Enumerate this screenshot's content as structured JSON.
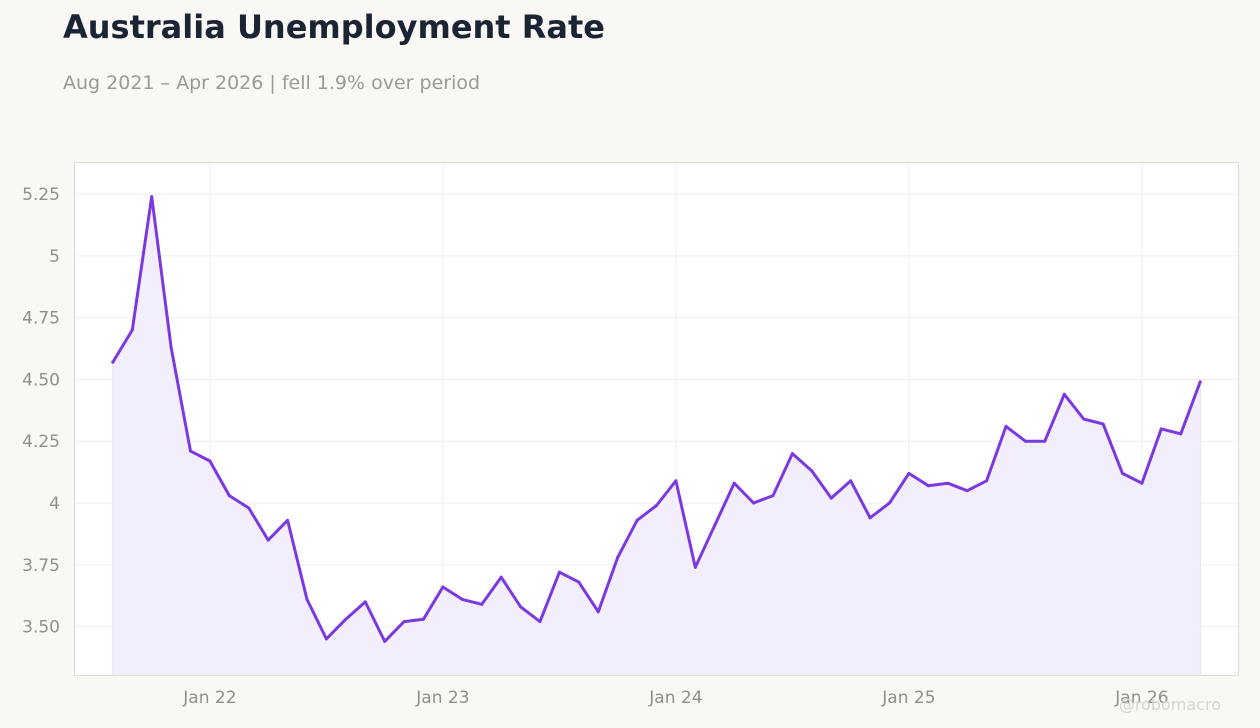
{
  "header": {
    "title": "Australia Unemployment Rate",
    "subtitle": "Aug 2021 – Apr 2026 | fell 1.9% over period"
  },
  "watermark": "@robomacro",
  "colors": {
    "line": "#7b3ae0",
    "fill": "#f1ecfc",
    "grid": "#eeeeee",
    "frame": "#dddcd6"
  },
  "chart_data": {
    "type": "area",
    "title": "Australia Unemployment Rate",
    "subtitle": "Aug 2021 – Apr 2026 | fell 1.9% over period",
    "xlabel": "",
    "ylabel": "",
    "grid": true,
    "legend": "none",
    "ylim": [
      3.3,
      5.38
    ],
    "xlim": [
      "2021-06",
      "2026-06"
    ],
    "y_ticks": [
      {
        "value": 3.5,
        "label": "3.50"
      },
      {
        "value": 3.75,
        "label": "3.75"
      },
      {
        "value": 4.0,
        "label": "4"
      },
      {
        "value": 4.25,
        "label": "4.25"
      },
      {
        "value": 4.5,
        "label": "4.50"
      },
      {
        "value": 4.75,
        "label": "4.75"
      },
      {
        "value": 5.0,
        "label": "5"
      },
      {
        "value": 5.25,
        "label": "5.25"
      }
    ],
    "x_ticks": [
      {
        "value": "2022-01",
        "label": "Jan 22"
      },
      {
        "value": "2023-01",
        "label": "Jan 23"
      },
      {
        "value": "2024-01",
        "label": "Jan 24"
      },
      {
        "value": "2025-01",
        "label": "Jan 25"
      },
      {
        "value": "2026-01",
        "label": "Jan 26"
      }
    ],
    "x": [
      "2021-08",
      "2021-09",
      "2021-10",
      "2021-11",
      "2021-12",
      "2022-01",
      "2022-02",
      "2022-03",
      "2022-04",
      "2022-05",
      "2022-06",
      "2022-07",
      "2022-08",
      "2022-09",
      "2022-10",
      "2022-11",
      "2022-12",
      "2023-01",
      "2023-02",
      "2023-03",
      "2023-04",
      "2023-05",
      "2023-06",
      "2023-07",
      "2023-08",
      "2023-09",
      "2023-10",
      "2023-11",
      "2023-12",
      "2024-01",
      "2024-02",
      "2024-03",
      "2024-04",
      "2024-05",
      "2024-06",
      "2024-07",
      "2024-08",
      "2024-09",
      "2024-10",
      "2024-11",
      "2024-12",
      "2025-01",
      "2025-02",
      "2025-03",
      "2025-04",
      "2025-05",
      "2025-06",
      "2025-07",
      "2025-08",
      "2025-09",
      "2025-10",
      "2025-11",
      "2025-12",
      "2026-01",
      "2026-02",
      "2026-03",
      "2026-04"
    ],
    "series": [
      {
        "values": [
          4.57,
          4.7,
          5.24,
          4.63,
          4.21,
          4.17,
          4.03,
          3.98,
          3.85,
          3.93,
          3.61,
          3.45,
          3.53,
          3.6,
          3.44,
          3.52,
          3.53,
          3.66,
          3.61,
          3.59,
          3.7,
          3.58,
          3.52,
          3.72,
          3.68,
          3.56,
          3.78,
          3.93,
          3.99,
          4.09,
          3.74,
          3.91,
          4.08,
          4.0,
          4.03,
          4.2,
          4.13,
          4.02,
          4.09,
          3.94,
          4.0,
          4.12,
          4.07,
          4.08,
          4.05,
          4.09,
          4.31,
          4.25,
          4.25,
          4.44,
          4.34,
          4.32,
          4.12,
          4.08,
          4.3,
          4.28,
          4.49
        ]
      }
    ]
  }
}
